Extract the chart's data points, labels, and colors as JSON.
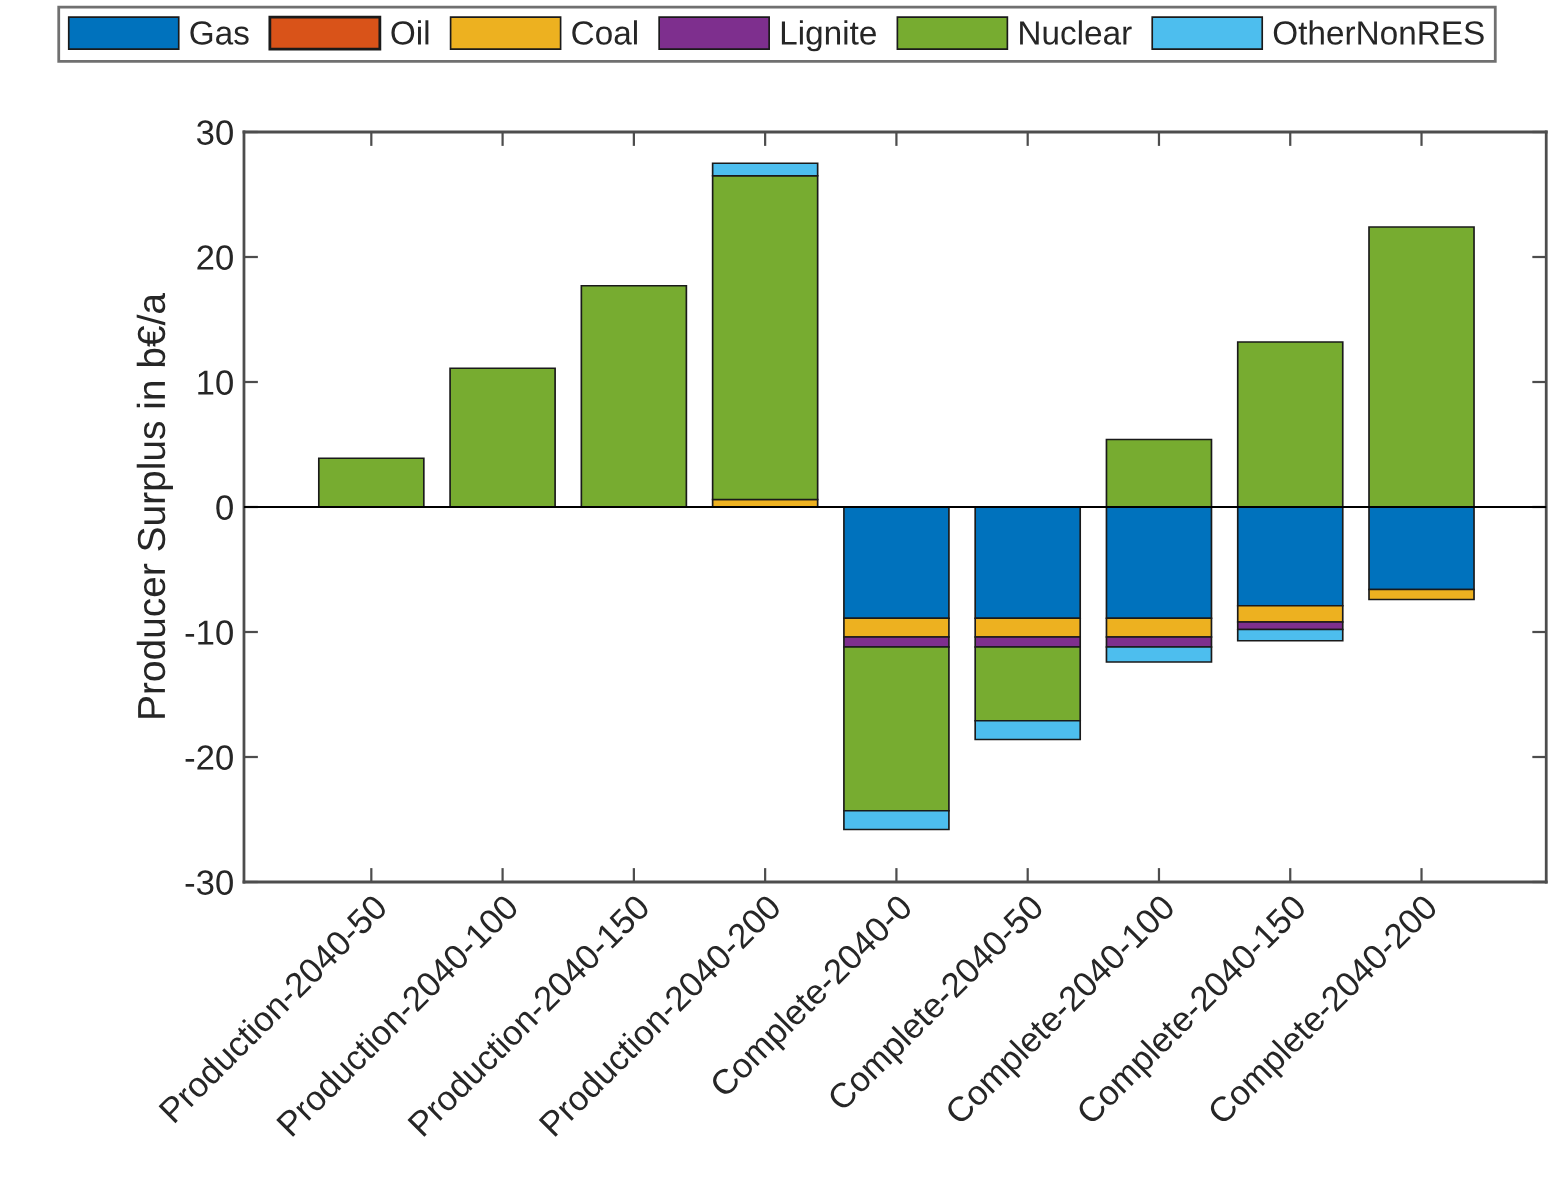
{
  "chart_data": {
    "type": "bar",
    "stacked": true,
    "ylabel": "Producer Surplus in b€/a",
    "categories": [
      "Production-2040-50",
      "Production-2040-100",
      "Production-2040-150",
      "Production-2040-200",
      "Complete-2040-0",
      "Complete-2040-50",
      "Complete-2040-100",
      "Complete-2040-150",
      "Complete-2040-200"
    ],
    "series": [
      {
        "name": "Gas",
        "color": "#0072bd",
        "values": [
          0,
          0,
          0,
          0,
          -8.9,
          -8.9,
          -8.9,
          -7.9,
          -6.6
        ]
      },
      {
        "name": "Oil",
        "color": "#d95319",
        "values": [
          0,
          0,
          0,
          0,
          0,
          0,
          0,
          0,
          0
        ]
      },
      {
        "name": "Coal",
        "color": "#edb120",
        "values": [
          0,
          0,
          null,
          0.6,
          -1.5,
          -1.5,
          -1.5,
          -1.3,
          -0.8
        ]
      },
      {
        "name": "Lignite",
        "color": "#7e2f8e",
        "values": [
          0,
          0,
          0,
          0,
          -0.8,
          -0.8,
          -0.8,
          -0.6,
          0
        ]
      },
      {
        "name": "Nuclear",
        "color": "#77ac30",
        "values": [
          3.9,
          11.1,
          17.7,
          25.9,
          -13.1,
          -5.9,
          5.4,
          13.2,
          22.4
        ]
      },
      {
        "name": "OtherNonRES",
        "color": "#4dbeee",
        "values": [
          0,
          0,
          0,
          1.0,
          -1.5,
          -1.5,
          -1.2,
          -0.9,
          0
        ]
      }
    ],
    "ylim": [
      -30,
      30
    ],
    "yticks": [
      -30,
      -20,
      -10,
      0,
      10,
      20,
      30
    ],
    "ref_lines": [
      {
        "axis": "y",
        "value": 0,
        "color": "#000000"
      }
    ],
    "grid": false,
    "legend": "top"
  }
}
